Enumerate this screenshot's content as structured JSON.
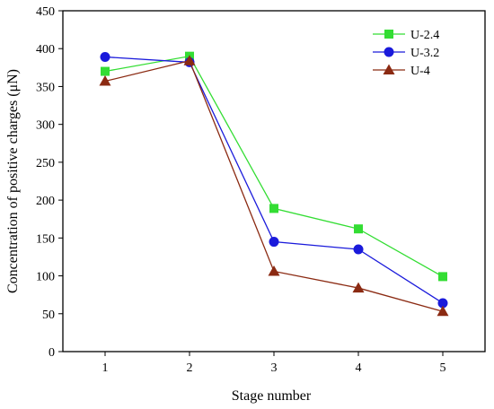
{
  "chart_data": {
    "type": "line",
    "title": "",
    "xlabel": "Stage number",
    "ylabel": "Concentration of positive charges (μN)",
    "x": [
      1,
      2,
      3,
      4,
      5
    ],
    "xlim": [
      0.5,
      5.5
    ],
    "ylim": [
      0,
      450
    ],
    "x_ticks": [
      "1",
      "2",
      "3",
      "4",
      "5"
    ],
    "y_ticks": [
      "0",
      "50",
      "100",
      "150",
      "200",
      "250",
      "300",
      "350",
      "400",
      "450"
    ],
    "grid": false,
    "legend_position": "top-right",
    "series": [
      {
        "name": "U-2.4",
        "values": [
          370,
          390,
          189,
          162,
          99
        ],
        "color": "#33dd33",
        "marker": "square"
      },
      {
        "name": "U-3.2",
        "values": [
          389,
          382,
          145,
          135,
          64
        ],
        "color": "#1a1adb",
        "marker": "circle"
      },
      {
        "name": "U-4",
        "values": [
          357,
          384,
          106,
          84,
          53
        ],
        "color": "#8b2a12",
        "marker": "triangle"
      }
    ]
  }
}
